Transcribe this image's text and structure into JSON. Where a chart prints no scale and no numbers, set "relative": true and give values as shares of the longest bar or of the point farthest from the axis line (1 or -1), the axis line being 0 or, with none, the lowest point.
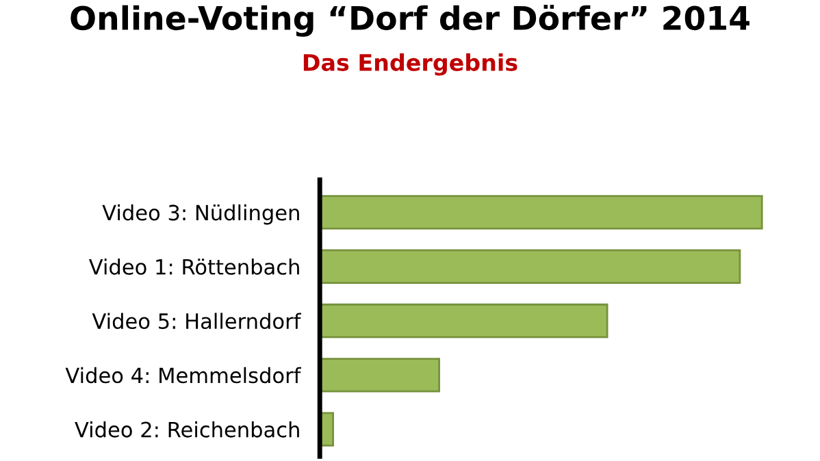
{
  "chart_data": {
    "type": "bar",
    "orientation": "horizontal",
    "relative": true,
    "title": "Online-Voting “Dorf der Dörfer” 2014",
    "subtitle": "Das Endergebnis",
    "categories": [
      "Video 3: Nüdlingen",
      "Video 1: Röttenbach",
      "Video 5: Hallerndorf",
      "Video 4: Memmelsdorf",
      "Video 2: Reichenbach"
    ],
    "values": [
      1,
      0.95,
      0.65,
      0.27,
      0.03
    ],
    "color": "#9bbb59",
    "grid": false,
    "legend": false
  }
}
